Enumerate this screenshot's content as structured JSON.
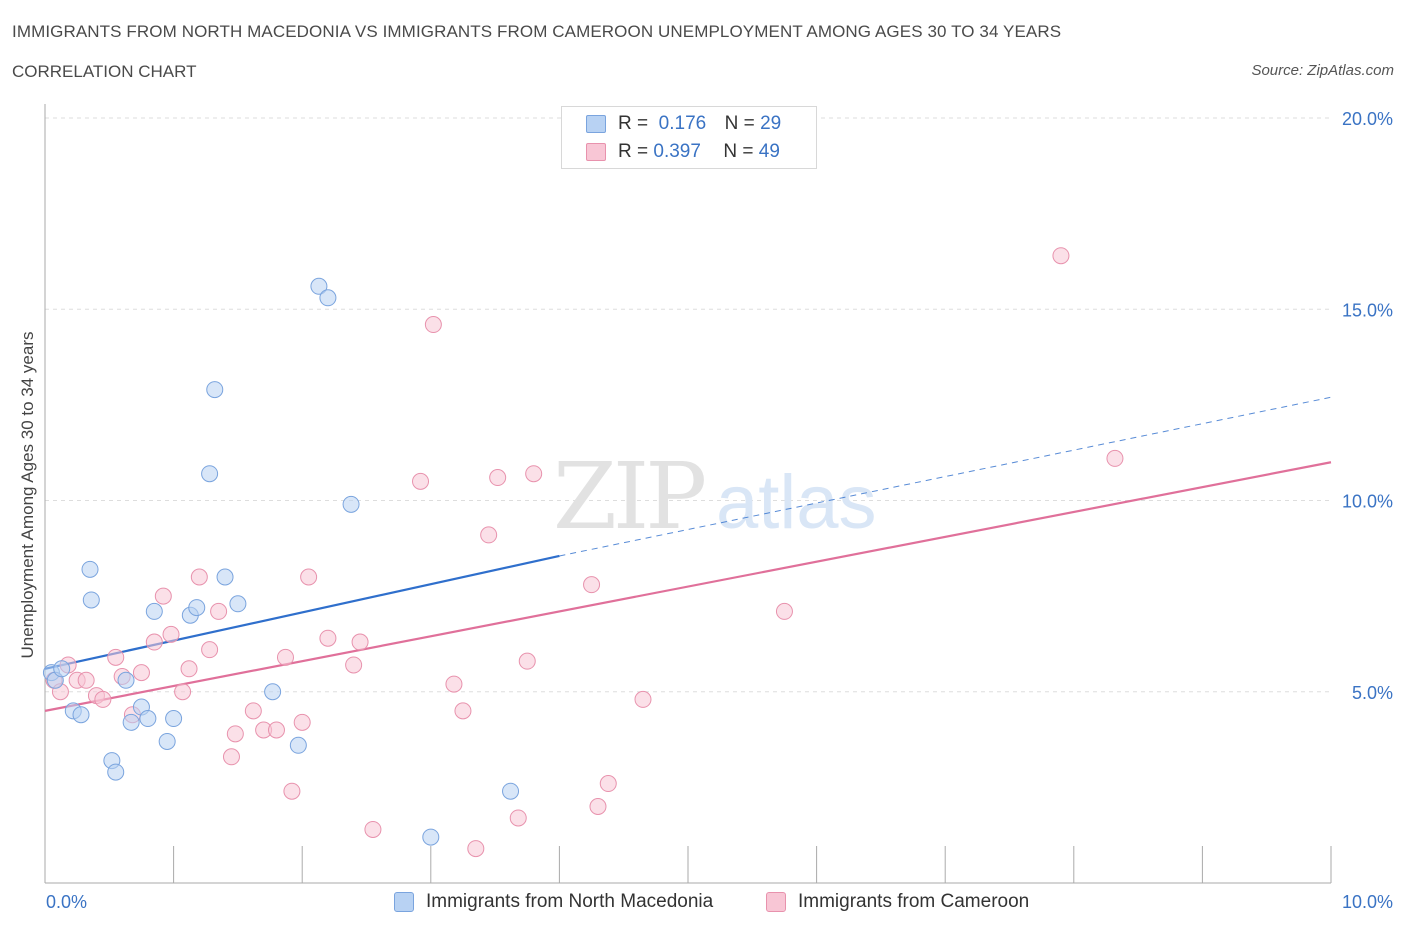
{
  "header": {
    "title": "IMMIGRANTS FROM NORTH MACEDONIA VS IMMIGRANTS FROM CAMEROON UNEMPLOYMENT AMONG AGES 30 TO 34 YEARS",
    "subtitle": "CORRELATION CHART",
    "source": "Source: ZipAtlas.com"
  },
  "watermark": "ZIPatlas",
  "legend": {
    "r_label": "R =",
    "n_label": "N =",
    "rows": [
      {
        "r": "0.176",
        "n": "29"
      },
      {
        "r": "0.397",
        "n": "49"
      }
    ]
  },
  "colors": {
    "blue_fill": "#b8d2f3",
    "blue_stroke": "#7aa4de",
    "blue_line": "#2f6fcc",
    "pink_fill": "#f8c6d5",
    "pink_stroke": "#e892ad",
    "pink_line": "#e0709a",
    "axis_text": "#3a73c4",
    "grid": "#dddddd"
  },
  "chart_data": {
    "type": "scatter",
    "title": "IMMIGRANTS FROM NORTH MACEDONIA VS IMMIGRANTS FROM CAMEROON UNEMPLOYMENT AMONG AGES 30 TO 34 YEARS",
    "xlabel": "",
    "ylabel": "Unemployment Among Ages 30 to 34 years",
    "xlim": [
      0,
      10
    ],
    "ylim": [
      0,
      20
    ],
    "x_tick_labels": [
      "0.0%",
      "10.0%"
    ],
    "y_ticks": [
      5,
      10,
      15,
      20
    ],
    "y_tick_labels": [
      "5.0%",
      "10.0%",
      "15.0%",
      "20.0%"
    ],
    "series": [
      {
        "name": "Immigrants from North Macedonia",
        "color_key": "blue",
        "trend": {
          "x0": 0.0,
          "y0": 5.6,
          "x1": 4.0,
          "y1": 8.55,
          "dashed_to_x": 10.0,
          "dashed_to_y": 12.7
        },
        "points": [
          [
            0.05,
            5.5
          ],
          [
            0.08,
            5.3
          ],
          [
            0.13,
            5.6
          ],
          [
            0.22,
            4.5
          ],
          [
            0.28,
            4.4
          ],
          [
            0.35,
            8.2
          ],
          [
            0.36,
            7.4
          ],
          [
            0.52,
            3.2
          ],
          [
            0.55,
            2.9
          ],
          [
            0.63,
            5.3
          ],
          [
            0.67,
            4.2
          ],
          [
            0.75,
            4.6
          ],
          [
            0.8,
            4.3
          ],
          [
            0.85,
            7.1
          ],
          [
            0.95,
            3.7
          ],
          [
            1.0,
            4.3
          ],
          [
            1.13,
            7.0
          ],
          [
            1.18,
            7.2
          ],
          [
            1.28,
            10.7
          ],
          [
            1.32,
            12.9
          ],
          [
            1.4,
            8.0
          ],
          [
            1.5,
            7.3
          ],
          [
            1.77,
            5.0
          ],
          [
            1.97,
            3.6
          ],
          [
            2.13,
            15.6
          ],
          [
            2.2,
            15.3
          ],
          [
            2.38,
            9.9
          ],
          [
            3.0,
            1.2
          ],
          [
            3.62,
            2.4
          ]
        ]
      },
      {
        "name": "Immigrants from Cameroon",
        "color_key": "pink",
        "trend": {
          "x0": 0.0,
          "y0": 4.5,
          "x1": 10.0,
          "y1": 11.0
        },
        "points": [
          [
            0.07,
            5.3
          ],
          [
            0.12,
            5.0
          ],
          [
            0.18,
            5.7
          ],
          [
            0.25,
            5.3
          ],
          [
            0.32,
            5.3
          ],
          [
            0.4,
            4.9
          ],
          [
            0.45,
            4.8
          ],
          [
            0.55,
            5.9
          ],
          [
            0.6,
            5.4
          ],
          [
            0.68,
            4.4
          ],
          [
            0.75,
            5.5
          ],
          [
            0.85,
            6.3
          ],
          [
            0.92,
            7.5
          ],
          [
            0.98,
            6.5
          ],
          [
            1.07,
            5.0
          ],
          [
            1.12,
            5.6
          ],
          [
            1.2,
            8.0
          ],
          [
            1.28,
            6.1
          ],
          [
            1.35,
            7.1
          ],
          [
            1.45,
            3.3
          ],
          [
            1.48,
            3.9
          ],
          [
            1.62,
            4.5
          ],
          [
            1.7,
            4.0
          ],
          [
            1.8,
            4.0
          ],
          [
            1.87,
            5.9
          ],
          [
            1.92,
            2.4
          ],
          [
            2.0,
            4.2
          ],
          [
            2.05,
            8.0
          ],
          [
            2.2,
            6.4
          ],
          [
            2.4,
            5.7
          ],
          [
            2.45,
            6.3
          ],
          [
            2.55,
            1.4
          ],
          [
            2.92,
            10.5
          ],
          [
            3.02,
            14.6
          ],
          [
            3.18,
            5.2
          ],
          [
            3.25,
            4.5
          ],
          [
            3.35,
            0.9
          ],
          [
            3.45,
            9.1
          ],
          [
            3.52,
            10.6
          ],
          [
            3.68,
            1.7
          ],
          [
            3.75,
            5.8
          ],
          [
            3.8,
            10.7
          ],
          [
            4.25,
            7.8
          ],
          [
            4.3,
            2.0
          ],
          [
            4.38,
            2.6
          ],
          [
            4.65,
            4.8
          ],
          [
            5.75,
            7.1
          ],
          [
            7.9,
            16.4
          ],
          [
            8.32,
            11.1
          ]
        ]
      }
    ]
  }
}
